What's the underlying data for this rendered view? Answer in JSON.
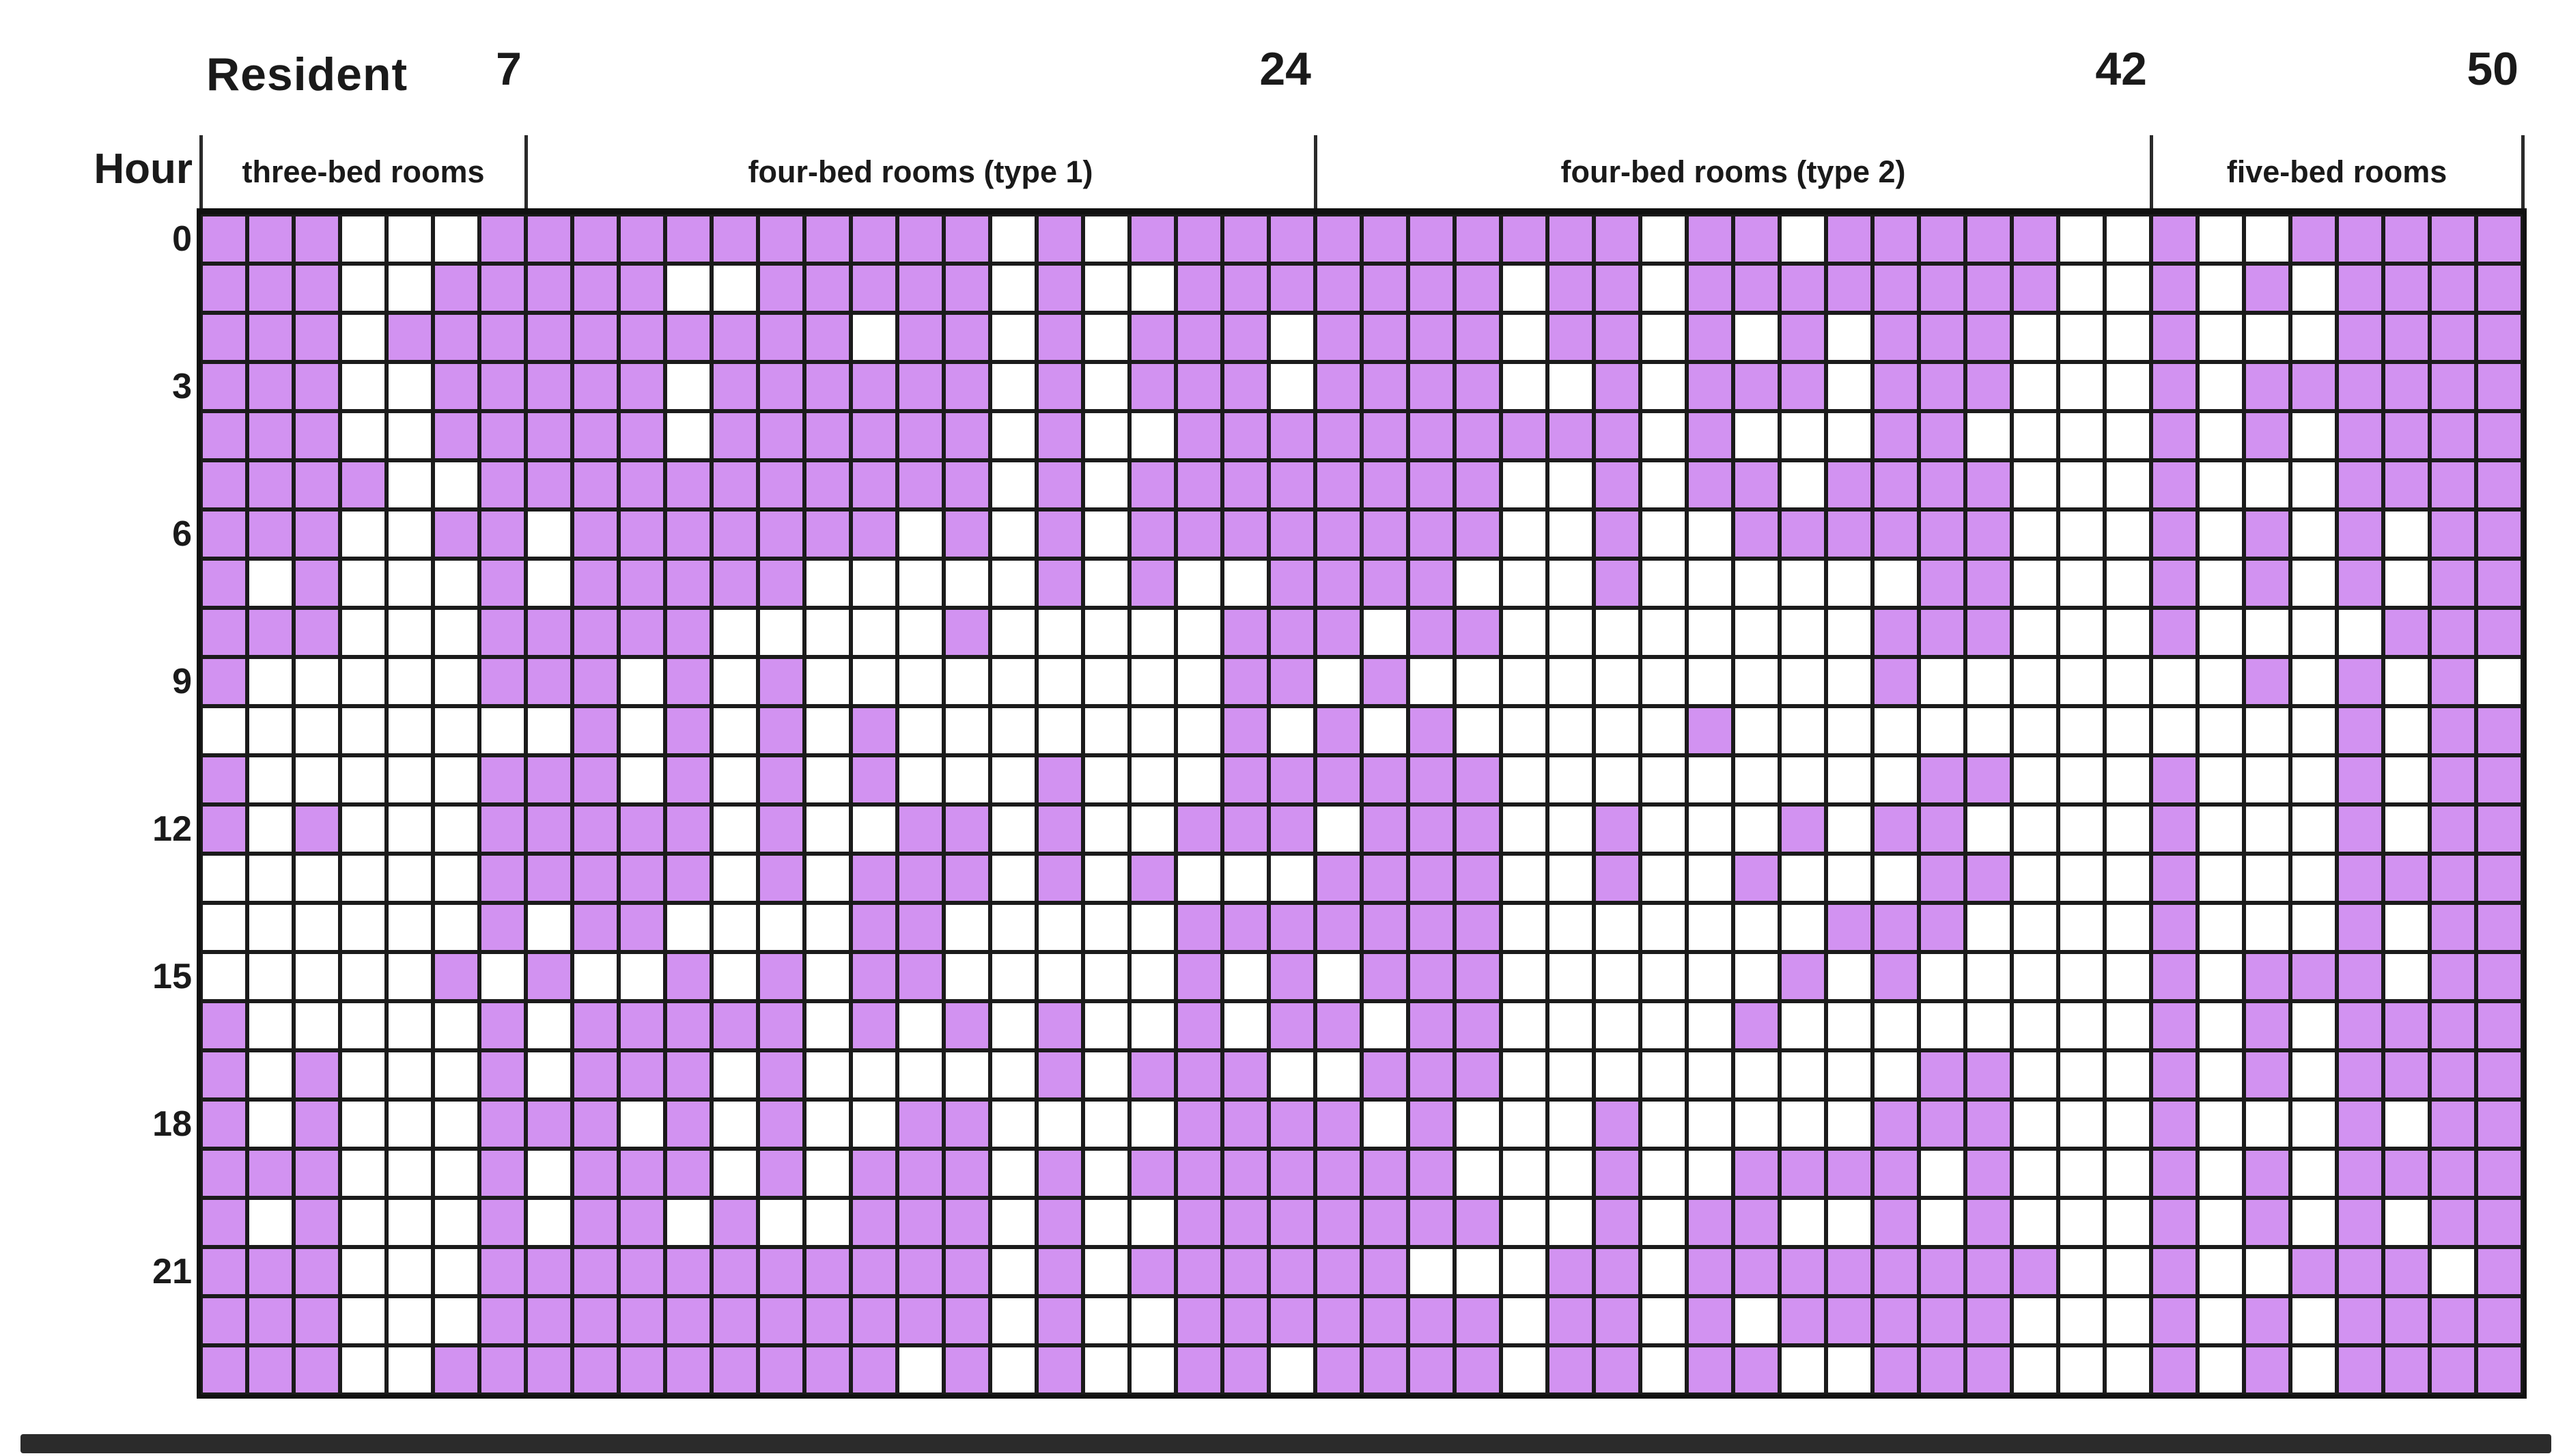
{
  "figure": {
    "x_axis_title": "Resident",
    "y_axis_title": "Hour",
    "boundary_labels": [
      {
        "text": "7",
        "col": 7
      },
      {
        "text": "24",
        "col": 24
      },
      {
        "text": "42",
        "col": 42
      },
      {
        "text": "50",
        "col": 50
      }
    ],
    "room_groups": [
      {
        "label": "three-bed rooms",
        "start_col": 1,
        "end_col": 7
      },
      {
        "label": "four-bed rooms (type 1)",
        "start_col": 8,
        "end_col": 24
      },
      {
        "label": "four-bed rooms (type 2)",
        "start_col": 25,
        "end_col": 42
      },
      {
        "label": "five-bed rooms",
        "start_col": 43,
        "end_col": 50
      }
    ],
    "hour_tick_labels": [
      {
        "text": "0",
        "row": 0
      },
      {
        "text": "3",
        "row": 3
      },
      {
        "text": "6",
        "row": 6
      },
      {
        "text": "9",
        "row": 9
      },
      {
        "text": "12",
        "row": 12
      },
      {
        "text": "15",
        "row": 15
      },
      {
        "text": "18",
        "row": 18
      },
      {
        "text": "21",
        "row": 21
      }
    ]
  },
  "chart_data": {
    "type": "heatmap",
    "xlabel": "Resident",
    "ylabel": "Hour",
    "x_range": [
      1,
      50
    ],
    "y_range": [
      0,
      23
    ],
    "n_cols": 50,
    "n_rows": 24,
    "legend_position": "none",
    "colors": {
      "filled": "#D292F1",
      "empty": "#FFFFFF",
      "gridline": "#1B1B1B"
    },
    "cell_encoding": "each row string has 50 chars, hour 0 at top; 1 = purple filled cell, 0 = white cell",
    "rows": [
      "11100011111111111010111111111110110111110010011111",
      "11100111110011111010011111110110111111110010101111",
      "11101111111111011010111011110110101011100010001111",
      "11100111110111111010111011110010111011100010111111",
      "11100111110111111010011111111110100011000010101111",
      "11110011111111111010111111110010110111100010001111",
      "11100110111111101010111111110010011111100010101011",
      "10100010111110000010100111100010000001100010101011",
      "11100011111000001000001110110000000011100010000111",
      "10000011101010000000001101000000000010000000101010",
      "00000000101010100000001010100000100000000000001011",
      "10000011101010100010001111110000000001100010001011",
      "10100011111010011010011101110010001011000010001011",
      "00000011111010111010100011110010010001100010001111",
      "00000010110000110000011111110000000111000010001011",
      "00000101001010110000010101110000001010000010111011",
      "10000010111110101010010110110000010000000010101111",
      "10100010111010000010111001110000000001100010101111",
      "10100011101010011000011110100010000011100010001011",
      "11100010111010111010111111100010011110100010101111",
      "10100010110100111010011111110010110010100010101011",
      "11100011111111111010111111000110111111110010011101",
      "11100011111111111010011111110110101111100010101111",
      "11100111111111101010011011110110110011100010101111"
    ]
  }
}
